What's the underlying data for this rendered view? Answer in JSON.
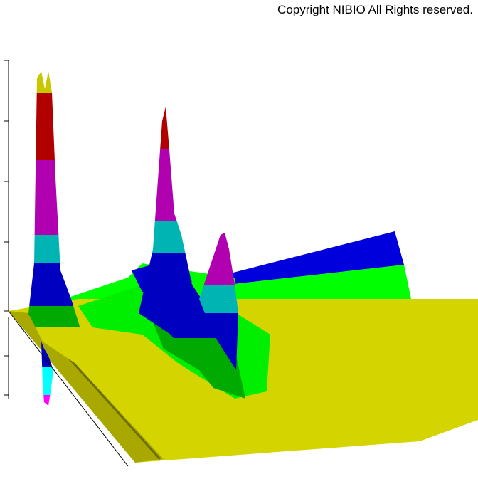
{
  "header": {
    "copyright": "Copyright NIBIO All Rights reserved."
  }
}
